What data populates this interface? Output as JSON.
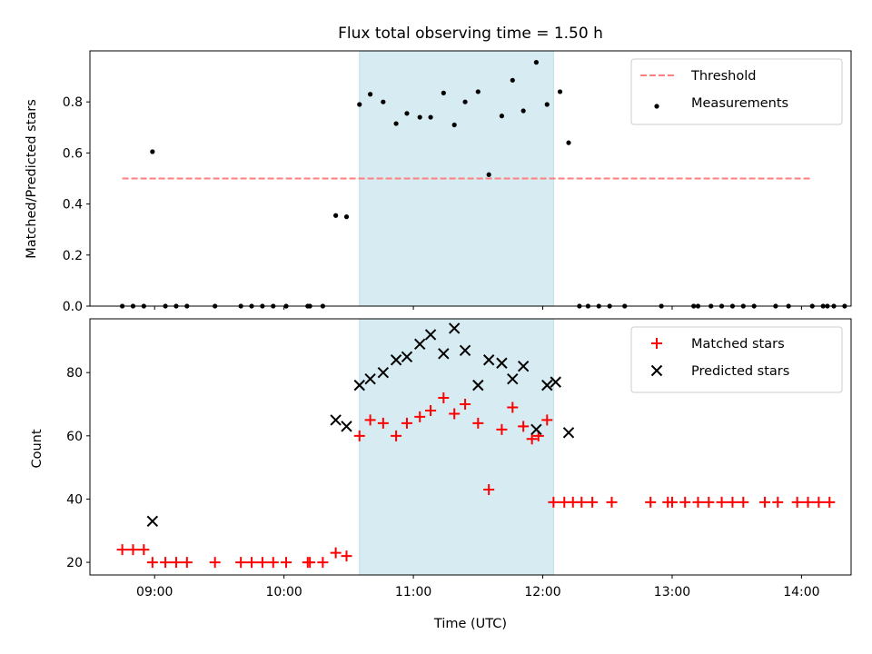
{
  "title": "Flux total observing time = 1.50 h",
  "chart_data": [
    {
      "type": "scatter",
      "panel": "top",
      "ylabel": "Matched/Predicted stars",
      "xlabel": "",
      "xlim": [
        "08:30",
        "14:23"
      ],
      "ylim": [
        0,
        1.0
      ],
      "yticks": [
        0.0,
        0.2,
        0.4,
        0.6,
        0.8
      ],
      "ytick_labels": [
        "0.0",
        "0.2",
        "0.4",
        "0.6",
        "0.8"
      ],
      "shaded_interval": [
        "10:35",
        "12:05"
      ],
      "shade_color": "#add8e6",
      "legend_position": "upper right",
      "threshold": {
        "name": "Threshold",
        "y": 0.5,
        "x_start": "08:45",
        "x_end": "14:05",
        "color": "#ff7f7f",
        "style": "dashed"
      },
      "series": [
        {
          "name": "Measurements",
          "color": "#000000",
          "marker": "dot",
          "points": [
            [
              "08:45",
              0.0
            ],
            [
              "08:50",
              0.0
            ],
            [
              "08:55",
              0.0
            ],
            [
              "08:59",
              0.605
            ],
            [
              "09:05",
              0.0
            ],
            [
              "09:10",
              0.0
            ],
            [
              "09:15",
              0.0
            ],
            [
              "09:28",
              0.0
            ],
            [
              "09:40",
              0.0
            ],
            [
              "09:45",
              0.0
            ],
            [
              "09:50",
              0.0
            ],
            [
              "09:55",
              0.0
            ],
            [
              "10:01",
              0.0
            ],
            [
              "10:11",
              0.0
            ],
            [
              "10:12",
              0.0
            ],
            [
              "10:18",
              0.0
            ],
            [
              "10:24",
              0.355
            ],
            [
              "10:29",
              0.35
            ],
            [
              "10:35",
              0.79
            ],
            [
              "10:40",
              0.83
            ],
            [
              "10:46",
              0.8
            ],
            [
              "10:52",
              0.715
            ],
            [
              "10:57",
              0.755
            ],
            [
              "11:03",
              0.74
            ],
            [
              "11:08",
              0.74
            ],
            [
              "11:14",
              0.835
            ],
            [
              "11:19",
              0.71
            ],
            [
              "11:24",
              0.8
            ],
            [
              "11:30",
              0.84
            ],
            [
              "11:35",
              0.515
            ],
            [
              "11:41",
              0.745
            ],
            [
              "11:46",
              0.885
            ],
            [
              "11:51",
              0.765
            ],
            [
              "11:57",
              0.955
            ],
            [
              "12:02",
              0.79
            ],
            [
              "12:08",
              0.84
            ],
            [
              "12:12",
              0.64
            ],
            [
              "12:17",
              0.0
            ],
            [
              "12:21",
              0.0
            ],
            [
              "12:26",
              0.0
            ],
            [
              "12:31",
              0.0
            ],
            [
              "12:38",
              0.0
            ],
            [
              "12:55",
              0.0
            ],
            [
              "13:10",
              0.0
            ],
            [
              "13:12",
              0.0
            ],
            [
              "13:18",
              0.0
            ],
            [
              "13:23",
              0.0
            ],
            [
              "13:28",
              0.0
            ],
            [
              "13:33",
              0.0
            ],
            [
              "13:38",
              0.0
            ],
            [
              "13:48",
              0.0
            ],
            [
              "13:54",
              0.0
            ],
            [
              "14:05",
              0.0
            ],
            [
              "14:10",
              0.0
            ],
            [
              "14:12",
              0.0
            ],
            [
              "14:15",
              0.0
            ],
            [
              "14:20",
              0.0
            ]
          ]
        }
      ]
    },
    {
      "type": "scatter",
      "panel": "bottom",
      "ylabel": "Count",
      "xlabel": "Time (UTC)",
      "xlim": [
        "08:30",
        "14:23"
      ],
      "ylim": [
        16,
        97
      ],
      "yticks": [
        20,
        40,
        60,
        80
      ],
      "ytick_labels": [
        "20",
        "40",
        "60",
        "80"
      ],
      "xticks": [
        "09:00",
        "10:00",
        "11:00",
        "12:00",
        "13:00",
        "14:00"
      ],
      "xtick_labels": [
        "09:00",
        "10:00",
        "11:00",
        "12:00",
        "13:00",
        "14:00"
      ],
      "shaded_interval": [
        "10:35",
        "12:05"
      ],
      "shade_color": "#add8e6",
      "legend_position": "upper right",
      "series": [
        {
          "name": "Matched stars",
          "color": "#ff0000",
          "marker": "plus",
          "points": [
            [
              "08:45",
              24
            ],
            [
              "08:50",
              24
            ],
            [
              "08:55",
              24
            ],
            [
              "08:59",
              20
            ],
            [
              "09:05",
              20
            ],
            [
              "09:10",
              20
            ],
            [
              "09:15",
              20
            ],
            [
              "09:28",
              20
            ],
            [
              "09:40",
              20
            ],
            [
              "09:45",
              20
            ],
            [
              "09:50",
              20
            ],
            [
              "09:55",
              20
            ],
            [
              "10:01",
              20
            ],
            [
              "10:11",
              20
            ],
            [
              "10:12",
              20
            ],
            [
              "10:18",
              20
            ],
            [
              "10:24",
              23
            ],
            [
              "10:29",
              22
            ],
            [
              "10:35",
              60
            ],
            [
              "10:40",
              65
            ],
            [
              "10:46",
              64
            ],
            [
              "10:52",
              60
            ],
            [
              "10:57",
              64
            ],
            [
              "11:03",
              66
            ],
            [
              "11:08",
              68
            ],
            [
              "11:14",
              72
            ],
            [
              "11:19",
              67
            ],
            [
              "11:24",
              70
            ],
            [
              "11:30",
              64
            ],
            [
              "11:35",
              43
            ],
            [
              "11:41",
              62
            ],
            [
              "11:46",
              69
            ],
            [
              "11:51",
              63
            ],
            [
              "11:55",
              59
            ],
            [
              "11:58",
              60
            ],
            [
              "12:02",
              65
            ],
            [
              "12:05",
              39
            ],
            [
              "12:10",
              39
            ],
            [
              "12:14",
              39
            ],
            [
              "12:18",
              39
            ],
            [
              "12:23",
              39
            ],
            [
              "12:32",
              39
            ],
            [
              "12:50",
              39
            ],
            [
              "12:58",
              39
            ],
            [
              "13:00",
              39
            ],
            [
              "13:06",
              39
            ],
            [
              "13:12",
              39
            ],
            [
              "13:17",
              39
            ],
            [
              "13:23",
              39
            ],
            [
              "13:28",
              39
            ],
            [
              "13:33",
              39
            ],
            [
              "13:43",
              39
            ],
            [
              "13:49",
              39
            ],
            [
              "13:58",
              39
            ],
            [
              "14:03",
              39
            ],
            [
              "14:08",
              39
            ],
            [
              "14:13",
              39
            ]
          ]
        },
        {
          "name": "Predicted stars",
          "color": "#000000",
          "marker": "cross",
          "points": [
            [
              "08:59",
              33
            ],
            [
              "10:24",
              65
            ],
            [
              "10:29",
              63
            ],
            [
              "10:35",
              76
            ],
            [
              "10:40",
              78
            ],
            [
              "10:46",
              80
            ],
            [
              "10:52",
              84
            ],
            [
              "10:57",
              85
            ],
            [
              "11:03",
              89
            ],
            [
              "11:08",
              92
            ],
            [
              "11:14",
              86
            ],
            [
              "11:19",
              94
            ],
            [
              "11:24",
              87
            ],
            [
              "11:30",
              76
            ],
            [
              "11:35",
              84
            ],
            [
              "11:41",
              83
            ],
            [
              "11:46",
              78
            ],
            [
              "11:51",
              82
            ],
            [
              "11:57",
              62
            ],
            [
              "12:02",
              76
            ],
            [
              "12:06",
              77
            ],
            [
              "12:12",
              61
            ]
          ]
        }
      ]
    }
  ]
}
